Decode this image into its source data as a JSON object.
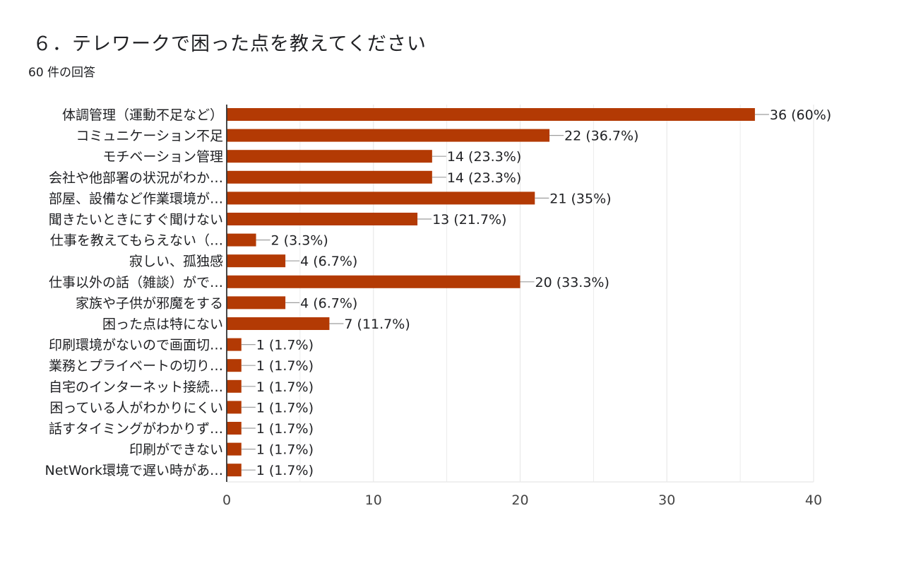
{
  "header": {
    "title": "６．テレワークで困った点を教えてください",
    "response_count": "60 件の回答"
  },
  "colors": {
    "bar": "#b33a04",
    "grid": "#e8e8e8",
    "axis": "#333333",
    "text": "#202124"
  },
  "chart_data": {
    "type": "bar",
    "orientation": "horizontal",
    "categories": [
      "体調管理（運動不足など）",
      "コミュニケーション不足",
      "モチベーション管理",
      "会社や他部署の状況がわか…",
      "部屋、設備など作業環境が…",
      "聞きたいときにすぐ聞けない",
      "仕事を教えてもらえない（…",
      "寂しい、孤独感",
      "仕事以外の話（雑談）がで…",
      "家族や子供が邪魔をする",
      "困った点は特にない",
      "印刷環境がないので画面切…",
      "業務とプライベートの切り…",
      "自宅のインターネット接続…",
      "困っている人がわかりにくい",
      "話すタイミングがわかりず…",
      "印刷ができない",
      "NetWork環境で遅い時があ…"
    ],
    "values": [
      36,
      22,
      14,
      14,
      21,
      13,
      2,
      4,
      20,
      4,
      7,
      1,
      1,
      1,
      1,
      1,
      1,
      1
    ],
    "data_labels": [
      "36 (60%)",
      "22 (36.7%)",
      "14 (23.3%)",
      "14 (23.3%)",
      "21 (35%)",
      "13 (21.7%)",
      "2 (3.3%)",
      "4 (6.7%)",
      "20 (33.3%)",
      "4 (6.7%)",
      "7 (11.7%)",
      "1 (1.7%)",
      "1 (1.7%)",
      "1 (1.7%)",
      "1 (1.7%)",
      "1 (1.7%)",
      "1 (1.7%)",
      "1 (1.7%)"
    ],
    "x_ticks": [
      "0",
      "10",
      "20",
      "30",
      "40"
    ],
    "xlim": [
      0,
      40
    ],
    "grid": true
  }
}
